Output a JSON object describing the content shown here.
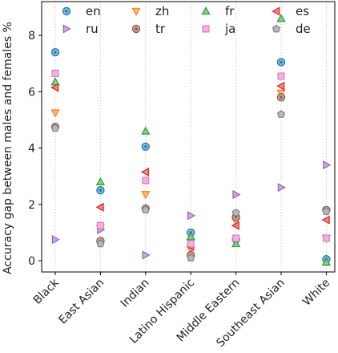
{
  "chart_data": {
    "type": "scatter",
    "title": "",
    "xlabel": "",
    "ylabel": "Accuracy gap between males and females %",
    "categories": [
      "Black",
      "East Asian",
      "Indian",
      "Latino Hispanic",
      "Middle Eastern",
      "Southeast Asian",
      "White"
    ],
    "ylim": [
      -0.4,
      9.2
    ],
    "yticks": [
      0,
      2,
      4,
      6,
      8
    ],
    "grid": "vertical dotted",
    "legend_position": "top",
    "series": [
      {
        "name": "en",
        "marker": "circle-dot",
        "color": "#1f77b4",
        "values": [
          7.4,
          2.5,
          4.05,
          1.0,
          0.75,
          7.05,
          0.05
        ]
      },
      {
        "name": "zh",
        "marker": "triangle-down",
        "color": "#ff7f0e",
        "values": [
          5.25,
          1.15,
          2.35,
          0.4,
          1.4,
          5.95,
          0.8
        ]
      },
      {
        "name": "fr",
        "marker": "triangle-up",
        "color": "#2ca02c",
        "values": [
          6.35,
          2.8,
          4.6,
          0.85,
          0.6,
          8.6,
          -0.05
        ]
      },
      {
        "name": "es",
        "marker": "triangle-left",
        "color": "#d62728",
        "values": [
          6.15,
          1.9,
          3.15,
          0.5,
          1.25,
          6.2,
          1.45
        ]
      },
      {
        "name": "ru",
        "marker": "triangle-right",
        "color": "#9467bd",
        "values": [
          0.75,
          1.1,
          0.2,
          1.6,
          2.35,
          2.6,
          3.4
        ]
      },
      {
        "name": "tr",
        "marker": "circle-dot",
        "color": "#8c564b",
        "values": [
          4.75,
          0.7,
          1.85,
          0.2,
          1.55,
          5.8,
          1.8
        ]
      },
      {
        "name": "ja",
        "marker": "square",
        "color": "#e377c2",
        "values": [
          6.65,
          1.25,
          2.85,
          0.6,
          0.8,
          6.55,
          0.8
        ]
      },
      {
        "name": "de",
        "marker": "pentagon",
        "color": "#7f7f7f",
        "values": [
          4.7,
          0.6,
          1.8,
          0.1,
          1.7,
          5.2,
          1.75
        ]
      }
    ]
  }
}
